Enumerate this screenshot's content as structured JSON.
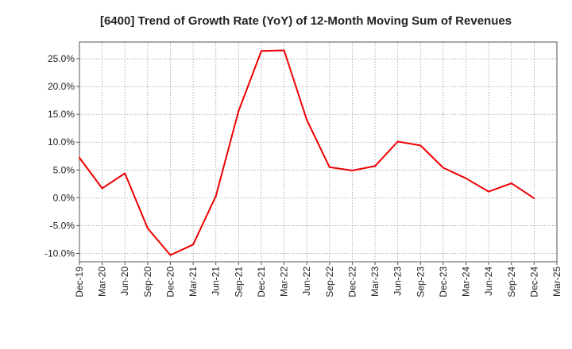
{
  "chart_data": {
    "type": "line",
    "title": "[6400]  Trend of Growth Rate (YoY) of 12-Month Moving Sum of Revenues",
    "xlabel": "",
    "ylabel": "",
    "x_ticks": [
      "Dec-19",
      "Mar-20",
      "Jun-20",
      "Sep-20",
      "Dec-20",
      "Mar-21",
      "Jun-21",
      "Sep-21",
      "Dec-21",
      "Mar-22",
      "Jun-22",
      "Sep-22",
      "Dec-22",
      "Mar-23",
      "Jun-23",
      "Sep-23",
      "Dec-23",
      "Mar-24",
      "Jun-24",
      "Sep-24",
      "Dec-24",
      "Mar-25"
    ],
    "y_ticks": [
      "25.0%",
      "20.0%",
      "15.0%",
      "10.0%",
      "5.0%",
      "0.0%",
      "-5.0%",
      "-10.0%"
    ],
    "y_tick_values": [
      25,
      20,
      15,
      10,
      5,
      0,
      -5,
      -10
    ],
    "ylim": [
      -11.5,
      28.0
    ],
    "grid": true,
    "series": [
      {
        "values": [
          7.2,
          1.7,
          4.4,
          -5.5,
          -10.3,
          -8.4,
          0.3,
          15.6,
          26.4,
          26.5,
          14.0,
          5.5,
          4.9,
          5.7,
          10.1,
          9.4,
          5.4,
          3.5,
          1.1,
          2.6,
          -0.1
        ],
        "color": "#ee0000"
      }
    ]
  }
}
